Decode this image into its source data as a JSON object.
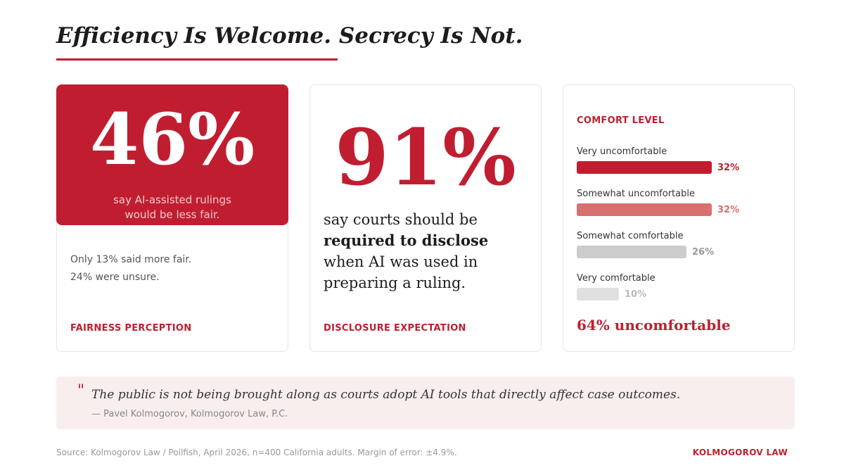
{
  "title": "Efficiency Is Welcome. Secrecy Is Not.",
  "colors": {
    "accent": "#c01e30",
    "bar_mid": "#d87070",
    "bar_light": "#cccccc",
    "bar_lightest": "#e0e0e0",
    "quote_bg": "#f9eeee"
  },
  "fairness": {
    "stat": "46%",
    "caption_line1": "say AI-assisted rulings",
    "caption_line2": "would be less fair.",
    "note_line1": "Only 13% said more fair.",
    "note_line2": "24% were unsure.",
    "label": "FAIRNESS PERCEPTION"
  },
  "disclosure": {
    "stat": "91%",
    "text_line1": "say courts should be",
    "text_bold": "required to disclose",
    "text_line3": "when AI was used in",
    "text_line4": "preparing a ruling.",
    "label": "DISCLOSURE EXPECTATION"
  },
  "chart_data": {
    "type": "bar",
    "orientation": "horizontal",
    "title": "COMFORT LEVEL",
    "categories": [
      "Very uncomfortable",
      "Somewhat uncomfortable",
      "Somewhat comfortable",
      "Very comfortable"
    ],
    "values": [
      32,
      32,
      26,
      10
    ],
    "value_labels": [
      "32%",
      "32%",
      "26%",
      "10%"
    ],
    "colors": [
      "#c01e30",
      "#d87070",
      "#cccccc",
      "#e0e0e0"
    ],
    "label_colors": [
      "#c01e30",
      "#d87070",
      "#999999",
      "#bbbbbb"
    ],
    "xlim": [
      0,
      32
    ]
  },
  "comfort_summary": "64% uncomfortable",
  "quote": {
    "mark": "\"",
    "text": "The public is not being brought along as courts adopt AI tools that directly affect case outcomes.",
    "attribution": "— Pavel Kolmogorov, Kolmogorov Law, P.C."
  },
  "footer": {
    "source": "Source: Kolmogorov Law / Pollfish, April 2026, n=400 California adults. Margin of error: ±4.9%.",
    "brand": "KOLMOGOROV LAW"
  }
}
